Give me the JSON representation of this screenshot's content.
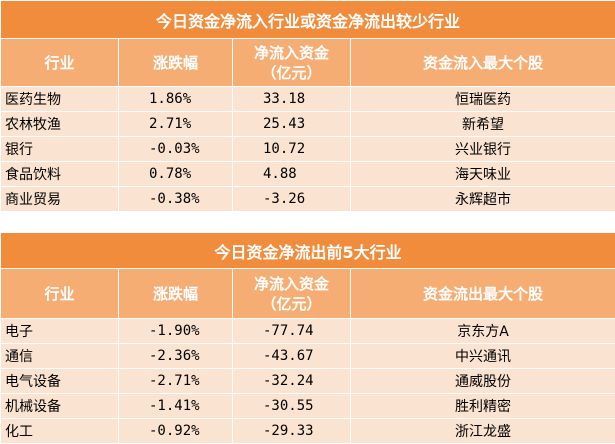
{
  "inflow_table": {
    "title": "今日资金净流入行业或资金净流出较少行业",
    "headers": [
      "行业",
      "涨跌幅",
      "净流入资金\n（亿元）",
      "资金流入最大个股"
    ],
    "rows": [
      {
        "industry": "医药生物",
        "change": "1.86%",
        "net_flow": "33.18",
        "top_stock": "恒瑞医药"
      },
      {
        "industry": "农林牧渔",
        "change": "2.71%",
        "net_flow": "25.43",
        "top_stock": "新希望"
      },
      {
        "industry": "银行",
        "change": "-0.03%",
        "net_flow": "10.72",
        "top_stock": "兴业银行"
      },
      {
        "industry": "食品饮料",
        "change": "0.78%",
        "net_flow": "4.88",
        "top_stock": "海天味业"
      },
      {
        "industry": "商业贸易",
        "change": "-0.38%",
        "net_flow": "-3.26",
        "top_stock": "永辉超市"
      }
    ]
  },
  "outflow_table": {
    "title": "今日资金净流出前5大行业",
    "headers": [
      "行业",
      "涨跌幅",
      "净流入资金\n（亿元）",
      "资金流出最大个股"
    ],
    "rows": [
      {
        "industry": "电子",
        "change": "-1.90%",
        "net_flow": "-77.74",
        "top_stock": "京东方A"
      },
      {
        "industry": "通信",
        "change": "-2.36%",
        "net_flow": "-43.67",
        "top_stock": "中兴通讯"
      },
      {
        "industry": "电气设备",
        "change": "-2.71%",
        "net_flow": "-32.24",
        "top_stock": "通威股份"
      },
      {
        "industry": "机械设备",
        "change": "-1.41%",
        "net_flow": "-30.55",
        "top_stock": "胜利精密"
      },
      {
        "industry": "化工",
        "change": "-0.92%",
        "net_flow": "-29.33",
        "top_stock": "浙江龙盛"
      }
    ]
  },
  "colors": {
    "title_bg": "#f08c3c",
    "header_bg": "#f6ad74",
    "row_bg": "#fbe3d1"
  }
}
